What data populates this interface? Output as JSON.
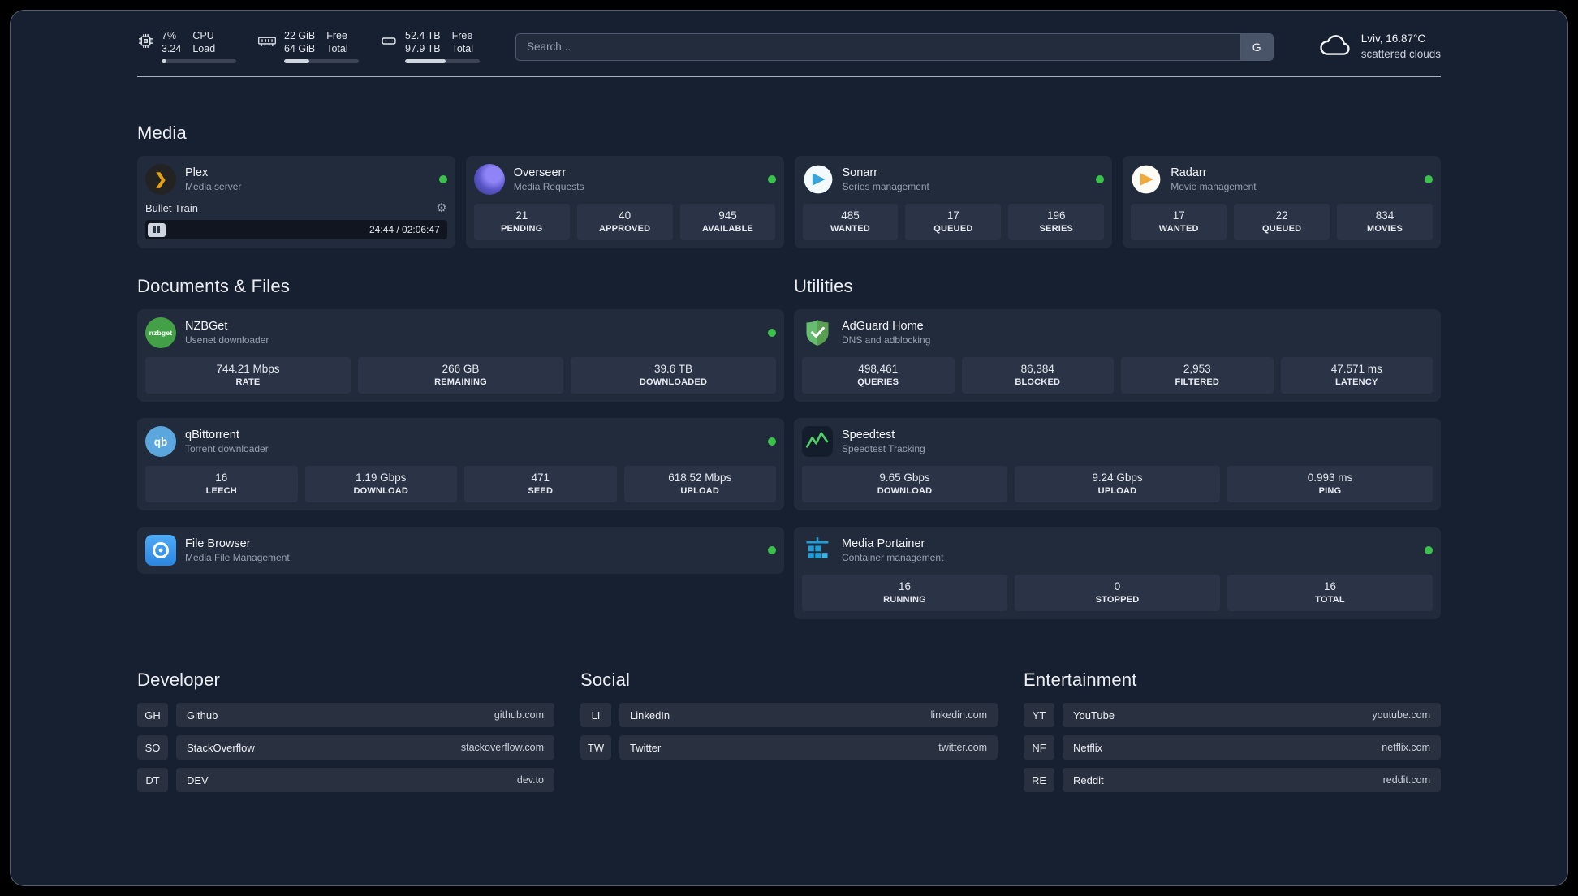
{
  "colors": {
    "status_online": "#3bc24a",
    "accent_plex": "#e5a00d"
  },
  "icons": {
    "gear-icon": "⚙",
    "plex-chevron": "❯",
    "nzbget-text": "nzbget",
    "qb-text": "qb"
  },
  "topbar": {
    "cpu": {
      "percent": "7%",
      "load": "3.24",
      "label_top": "CPU",
      "label_bottom": "Load",
      "progress": 7
    },
    "ram": {
      "free": "22 GiB",
      "total": "64 GiB",
      "label_top": "Free",
      "label_bottom": "Total",
      "progress": 34
    },
    "disk": {
      "free": "52.4 TB",
      "total": "97.9 TB",
      "label_top": "Free",
      "label_bottom": "Total",
      "progress": 54
    },
    "search": {
      "placeholder": "Search...",
      "button_label": "G"
    },
    "weather": {
      "location": "Lviv, 16.87°C",
      "condition": "scattered clouds"
    }
  },
  "media": {
    "title": "Media",
    "plex": {
      "name": "Plex",
      "subtitle": "Media server",
      "player": {
        "track": "Bullet Train",
        "time": "24:44 / 02:06:47",
        "progress": 20
      }
    },
    "overseerr": {
      "name": "Overseerr",
      "subtitle": "Media Requests",
      "stats": [
        {
          "value": "21",
          "label": "PENDING"
        },
        {
          "value": "40",
          "label": "APPROVED"
        },
        {
          "value": "945",
          "label": "AVAILABLE"
        }
      ]
    },
    "sonarr": {
      "name": "Sonarr",
      "subtitle": "Series management",
      "stats": [
        {
          "value": "485",
          "label": "WANTED"
        },
        {
          "value": "17",
          "label": "QUEUED"
        },
        {
          "value": "196",
          "label": "SERIES"
        }
      ]
    },
    "radarr": {
      "name": "Radarr",
      "subtitle": "Movie management",
      "stats": [
        {
          "value": "17",
          "label": "WANTED"
        },
        {
          "value": "22",
          "label": "QUEUED"
        },
        {
          "value": "834",
          "label": "MOVIES"
        }
      ]
    }
  },
  "documents": {
    "title": "Documents & Files",
    "nzbget": {
      "name": "NZBGet",
      "subtitle": "Usenet downloader",
      "stats": [
        {
          "value": "744.21 Mbps",
          "label": "RATE"
        },
        {
          "value": "266 GB",
          "label": "REMAINING"
        },
        {
          "value": "39.6 TB",
          "label": "DOWNLOADED"
        }
      ]
    },
    "qbittorrent": {
      "name": "qBittorrent",
      "subtitle": "Torrent downloader",
      "stats": [
        {
          "value": "16",
          "label": "LEECH"
        },
        {
          "value": "1.19 Gbps",
          "label": "DOWNLOAD"
        },
        {
          "value": "471",
          "label": "SEED"
        },
        {
          "value": "618.52 Mbps",
          "label": "UPLOAD"
        }
      ]
    },
    "filebrowser": {
      "name": "File Browser",
      "subtitle": "Media File Management"
    }
  },
  "utilities": {
    "title": "Utilities",
    "adguard": {
      "name": "AdGuard Home",
      "subtitle": "DNS and adblocking",
      "stats": [
        {
          "value": "498,461",
          "label": "QUERIES"
        },
        {
          "value": "86,384",
          "label": "BLOCKED"
        },
        {
          "value": "2,953",
          "label": "FILTERED"
        },
        {
          "value": "47.571 ms",
          "label": "LATENCY"
        }
      ]
    },
    "speedtest": {
      "name": "Speedtest",
      "subtitle": "Speedtest Tracking",
      "stats": [
        {
          "value": "9.65 Gbps",
          "label": "DOWNLOAD"
        },
        {
          "value": "9.24 Gbps",
          "label": "UPLOAD"
        },
        {
          "value": "0.993 ms",
          "label": "PING"
        }
      ]
    },
    "portainer": {
      "name": "Media Portainer",
      "subtitle": "Container management",
      "stats": [
        {
          "value": "16",
          "label": "RUNNING"
        },
        {
          "value": "0",
          "label": "STOPPED"
        },
        {
          "value": "16",
          "label": "TOTAL"
        }
      ]
    }
  },
  "bookmarks": {
    "developer": {
      "title": "Developer",
      "items": [
        {
          "abbr": "GH",
          "name": "Github",
          "url": "github.com"
        },
        {
          "abbr": "SO",
          "name": "StackOverflow",
          "url": "stackoverflow.com"
        },
        {
          "abbr": "DT",
          "name": "DEV",
          "url": "dev.to"
        }
      ]
    },
    "social": {
      "title": "Social",
      "items": [
        {
          "abbr": "LI",
          "name": "LinkedIn",
          "url": "linkedin.com"
        },
        {
          "abbr": "TW",
          "name": "Twitter",
          "url": "twitter.com"
        }
      ]
    },
    "entertainment": {
      "title": "Entertainment",
      "items": [
        {
          "abbr": "YT",
          "name": "YouTube",
          "url": "youtube.com"
        },
        {
          "abbr": "NF",
          "name": "Netflix",
          "url": "netflix.com"
        },
        {
          "abbr": "RE",
          "name": "Reddit",
          "url": "reddit.com"
        }
      ]
    }
  }
}
